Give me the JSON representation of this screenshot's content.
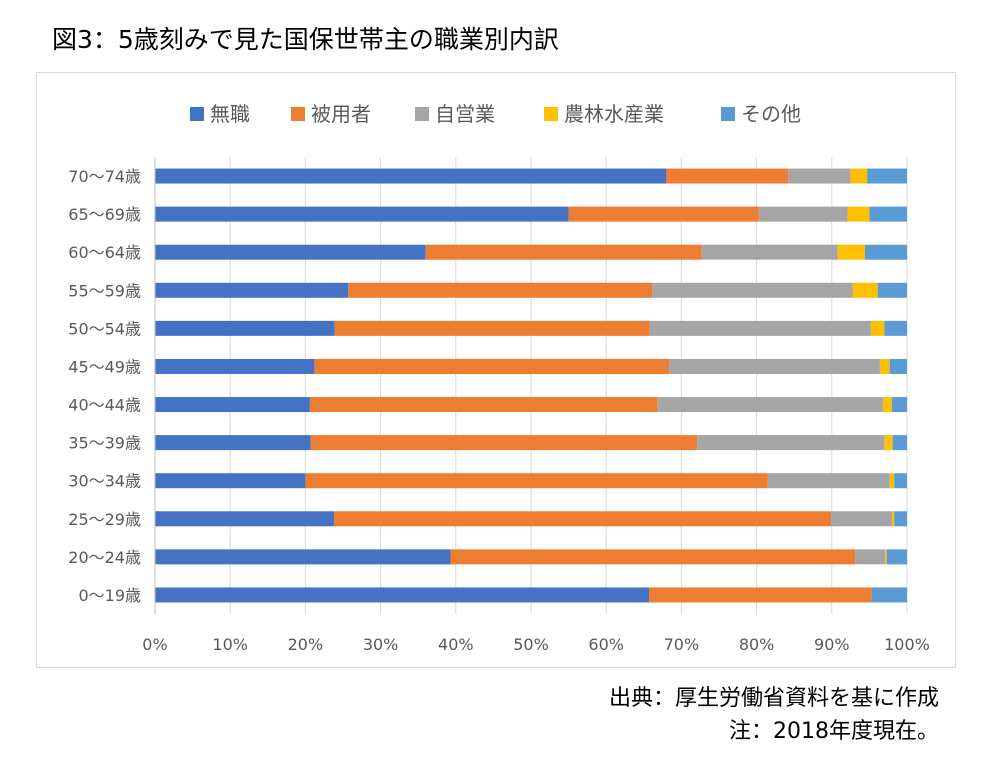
{
  "page": {
    "title": "図3：5歳刻みで見た国保世帯主の職業別内訳",
    "source": "出典：厚生労働省資料を基に作成",
    "note": "注：2018年度現在。"
  },
  "chart_data": {
    "type": "bar",
    "orientation": "horizontal",
    "stacked": "percent",
    "categories": [
      "0〜19歳",
      "20〜24歳",
      "25〜29歳",
      "30〜34歳",
      "35〜39歳",
      "40〜44歳",
      "45〜49歳",
      "50〜54歳",
      "55〜59歳",
      "60〜64歳",
      "65〜69歳",
      "70〜74歳"
    ],
    "series": [
      {
        "name": "無職",
        "color": "#4472C4",
        "values": [
          65.7,
          39.3,
          23.8,
          20.0,
          20.7,
          20.6,
          21.2,
          23.9,
          25.7,
          36.0,
          55.0,
          68.0
        ]
      },
      {
        "name": "被用者",
        "color": "#ED7D31",
        "values": [
          29.6,
          53.8,
          66.1,
          61.5,
          51.4,
          46.2,
          47.2,
          41.9,
          40.4,
          36.7,
          25.3,
          16.2
        ]
      },
      {
        "name": "自営業",
        "color": "#A5A5A5",
        "values": [
          0.0,
          4.0,
          8.1,
          16.2,
          24.9,
          30.0,
          28.0,
          29.4,
          26.7,
          18.1,
          11.8,
          8.3
        ]
      },
      {
        "name": "農林水産業",
        "color": "#FFC000",
        "values": [
          0.0,
          0.2,
          0.3,
          0.6,
          1.1,
          1.2,
          1.3,
          1.8,
          3.3,
          3.6,
          2.9,
          2.2
        ]
      },
      {
        "name": "その他",
        "color": "#5B9BD5",
        "values": [
          4.7,
          2.7,
          1.7,
          1.7,
          1.9,
          2.0,
          2.3,
          3.0,
          3.9,
          5.6,
          5.0,
          5.3
        ]
      }
    ],
    "xlim": [
      0,
      100
    ],
    "xticks": [
      "0%",
      "10%",
      "20%",
      "30%",
      "40%",
      "50%",
      "60%",
      "70%",
      "80%",
      "90%",
      "100%"
    ],
    "grid": true,
    "legend": "top"
  }
}
